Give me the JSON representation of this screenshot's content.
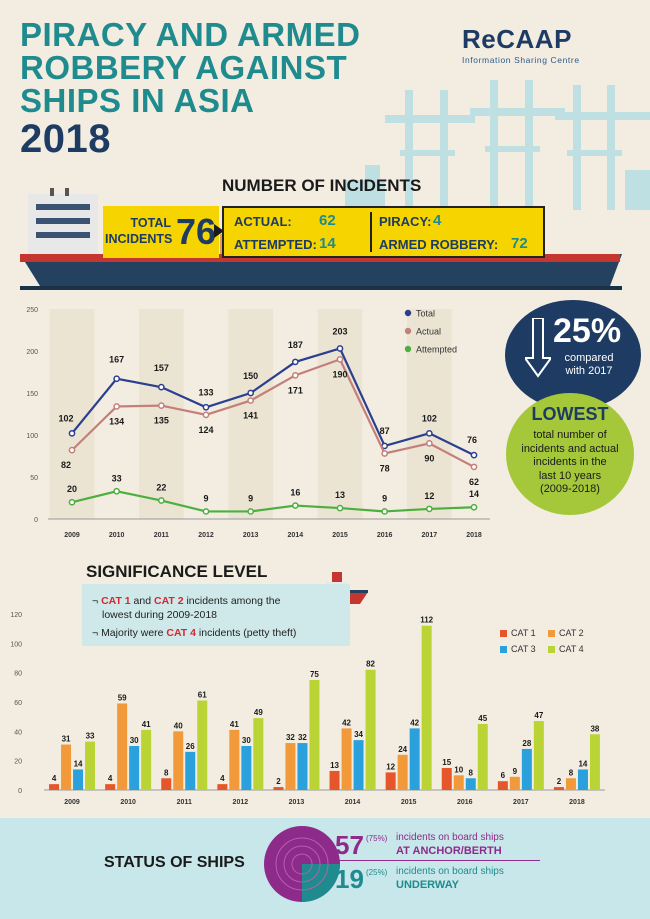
{
  "title": {
    "line1": "PIRACY AND ARMED",
    "line2": "ROBBERY AGAINST",
    "line3": "SHIPS IN ASIA",
    "year": "2018"
  },
  "logo": {
    "name": "ReCAAP",
    "subtitle": "Information Sharing Centre"
  },
  "incidents": {
    "heading": "NUMBER OF INCIDENTS",
    "total_label_1": "TOTAL",
    "total_label_2": "INCIDENTS",
    "total_value": "76",
    "actual_label": "ACTUAL:",
    "actual_value": "62",
    "attempted_label": "ATTEMPTED:",
    "attempted_value": "14",
    "piracy_label": "PIRACY:",
    "piracy_value": "4",
    "armed_label": "ARMED ROBBERY:",
    "armed_value": "72"
  },
  "callout": {
    "percent": "25%",
    "compared_1": "compared",
    "compared_2": "with 2017",
    "lowest": "LOWEST",
    "desc_1": "total number of",
    "desc_2": "incidents and actual",
    "desc_3": "incidents in the",
    "desc_4": "last 10 years",
    "desc_5": "(2009-2018)"
  },
  "significance": {
    "heading": "SIGNIFICANCE LEVEL",
    "note1_a": "CAT 1",
    "note1_b": " and ",
    "note1_c": "CAT 2",
    "note1_d": " incidents among the",
    "note1_e": "lowest during 2009-2018",
    "note2_a": "Majority were ",
    "note2_b": "CAT 4",
    "note2_c": " incidents (petty theft)"
  },
  "status": {
    "heading": "STATUS OF SHIPS",
    "anchor_value": "57",
    "anchor_pct": "(75%)",
    "anchor_desc": "incidents on board ships",
    "anchor_label": "AT ANCHOR/BERTH",
    "underway_value": "19",
    "underway_pct": "(25%)",
    "underway_desc": "incidents on board ships",
    "underway_label": "UNDERWAY"
  },
  "colors": {
    "total": "#2b3f8f",
    "actual": "#c47f7a",
    "attempted": "#4caf3f",
    "cat1": "#e6562a",
    "cat2": "#f2993a",
    "cat3": "#2aa0dc",
    "cat4": "#b9d434",
    "teal": "#1f8b8e",
    "navy": "#1d3b63",
    "purple": "#8e2a8a"
  },
  "chart_data": [
    {
      "type": "line",
      "x": [
        "2009",
        "2010",
        "2011",
        "2012",
        "2013",
        "2014",
        "2015",
        "2016",
        "2017",
        "2018"
      ],
      "ylim": [
        0,
        250
      ],
      "yticks": [
        "0",
        "50",
        "100",
        "150",
        "200",
        "250"
      ],
      "legend_position": "top-right",
      "series": [
        {
          "name": "Total",
          "values": [
            102,
            167,
            157,
            133,
            150,
            187,
            203,
            87,
            102,
            76
          ]
        },
        {
          "name": "Actual",
          "values": [
            82,
            134,
            135,
            124,
            141,
            171,
            190,
            78,
            90,
            62
          ]
        },
        {
          "name": "Attempted",
          "values": [
            20,
            33,
            22,
            9,
            9,
            16,
            13,
            9,
            12,
            14
          ]
        }
      ]
    },
    {
      "type": "bar",
      "categories": [
        "2009",
        "2010",
        "2011",
        "2012",
        "2013",
        "2014",
        "2015",
        "2016",
        "2017",
        "2018"
      ],
      "ylim": [
        0,
        120
      ],
      "yticks": [
        "0",
        "20",
        "40",
        "60",
        "80",
        "100",
        "120"
      ],
      "legend_position": "top-right",
      "series": [
        {
          "name": "CAT 1",
          "values": [
            4,
            4,
            8,
            4,
            2,
            13,
            12,
            15,
            6,
            2
          ]
        },
        {
          "name": "CAT 2",
          "values": [
            31,
            59,
            40,
            41,
            32,
            42,
            24,
            10,
            9,
            8
          ]
        },
        {
          "name": "CAT 3",
          "values": [
            14,
            30,
            26,
            30,
            32,
            34,
            42,
            8,
            28,
            14
          ]
        },
        {
          "name": "CAT 4",
          "values": [
            33,
            41,
            61,
            49,
            75,
            82,
            112,
            45,
            47,
            38
          ]
        }
      ]
    }
  ]
}
